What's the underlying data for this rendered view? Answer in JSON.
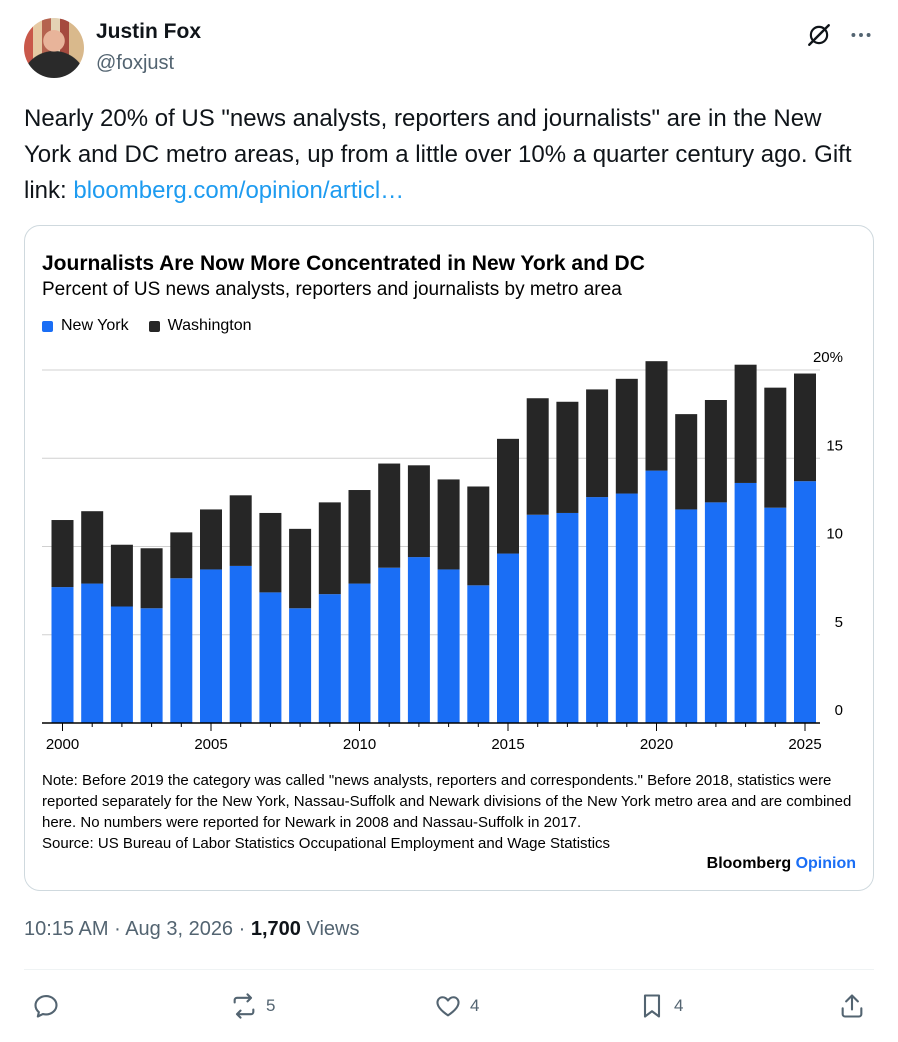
{
  "author": {
    "name": "Justin Fox",
    "handle": "@foxjust"
  },
  "tweet": {
    "text": "Nearly 20% of US \"news analysts, reporters and journalists\" are in the New York and DC metro areas, up from a little over 10% a quarter century ago. Gift link: ",
    "link_text": "bloomberg.com/opinion/articl…"
  },
  "chart_data": {
    "type": "bar",
    "stacked": true,
    "title": "Journalists Are Now More Concentrated in New York and DC",
    "subtitle": "Percent of US news analysts, reporters and journalists by metro area",
    "x": [
      2000,
      2001,
      2002,
      2003,
      2004,
      2005,
      2006,
      2007,
      2008,
      2009,
      2010,
      2011,
      2012,
      2013,
      2014,
      2015,
      2016,
      2017,
      2018,
      2019,
      2020,
      2021,
      2022,
      2023,
      2024,
      2025
    ],
    "series": [
      {
        "name": "New York",
        "color": "#1a6ef5",
        "values": [
          7.7,
          7.9,
          6.6,
          6.5,
          8.2,
          8.7,
          8.9,
          7.4,
          6.5,
          7.3,
          7.9,
          8.8,
          9.4,
          8.7,
          7.8,
          9.6,
          11.8,
          11.9,
          12.8,
          13.0,
          14.3,
          12.1,
          12.5,
          13.6,
          12.2,
          13.7
        ]
      },
      {
        "name": "Washington",
        "color": "#262626",
        "values": [
          3.8,
          4.1,
          3.5,
          3.4,
          2.6,
          3.4,
          4.0,
          4.5,
          4.5,
          5.2,
          5.3,
          5.9,
          5.2,
          5.1,
          5.6,
          6.5,
          6.6,
          6.3,
          6.1,
          6.5,
          6.2,
          5.4,
          5.8,
          6.7,
          6.8,
          6.1
        ]
      }
    ],
    "y_ticks": [
      "0",
      "5",
      "10",
      "15",
      "20%"
    ],
    "x_ticks": [
      "2000",
      "2005",
      "2010",
      "2015",
      "2020",
      "2025"
    ],
    "ylim": [
      0,
      20
    ],
    "grid": true,
    "legend": "top-left",
    "note": "Note: Before 2019 the category was called \"news analysts, reporters and correspondents.\" Before 2018, statistics were reported separately for the New York, Nassau-Suffolk and Newark divisions of the New York metro area and are combined here. No numbers were reported for Newark in 2008 and Nassau-Suffolk in 2017.",
    "source": "Source: US Bureau of Labor Statistics Occupational Employment and Wage Statistics",
    "brand": "Bloomberg",
    "brand_accent": "Opinion"
  },
  "meta": {
    "time": "10:15 AM",
    "date": "Aug 3, 2026",
    "views_count": "1,700",
    "views_label": "Views"
  },
  "actions": {
    "replies": "",
    "reposts": "5",
    "likes": "4",
    "bookmarks": "4"
  }
}
